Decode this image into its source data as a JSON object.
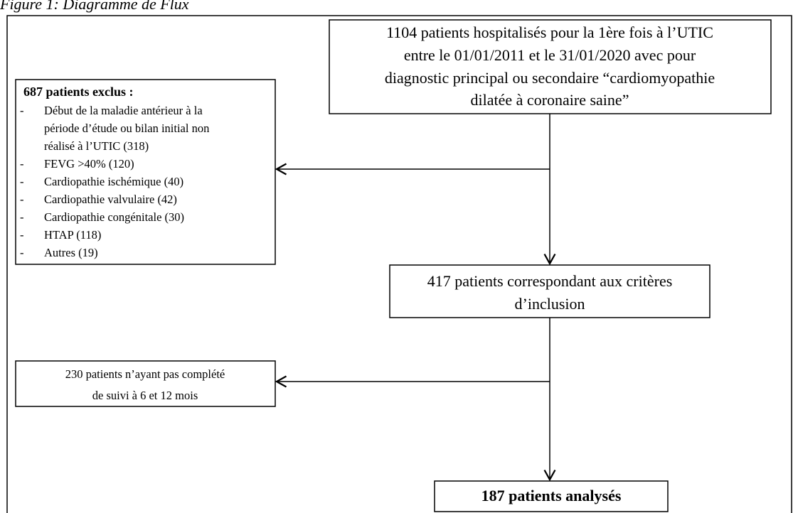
{
  "caption": "Figure 1: Diagramme de Flux",
  "nodes": [
    {
      "lines": [
        "1104 patients hospitalisés pour la 1ère fois à l’UTIC",
        "entre le 01/01/2011 et le 31/01/2020 avec pour",
        "diagnostic principal ou secondaire “cardiomyopathie",
        "dilatée à coronaire saine”"
      ]
    },
    {
      "lines": [
        "417 patients correspondant aux critères",
        "d’inclusion"
      ]
    },
    {
      "lines": [
        "187 patients analysés"
      ]
    }
  ],
  "excluded": {
    "title": "687 patients exclus :",
    "bullet": "-",
    "items": [
      [
        "Début de la maladie antérieur à la",
        "période d’étude ou bilan initial non",
        "réalisé à l’UTIC (318)"
      ],
      [
        "FEVG >40% (120)"
      ],
      [
        "Cardiopathie ischémique (40)"
      ],
      [
        "Cardiopathie valvulaire (42)"
      ],
      [
        "Cardiopathie congénitale (30)"
      ],
      [
        "HTAP (118)"
      ],
      [
        "Autres (19)"
      ]
    ]
  },
  "lost": {
    "lines": [
      "230 patients n’ayant pas complété",
      "de suivi à 6 et 12 mois"
    ]
  }
}
